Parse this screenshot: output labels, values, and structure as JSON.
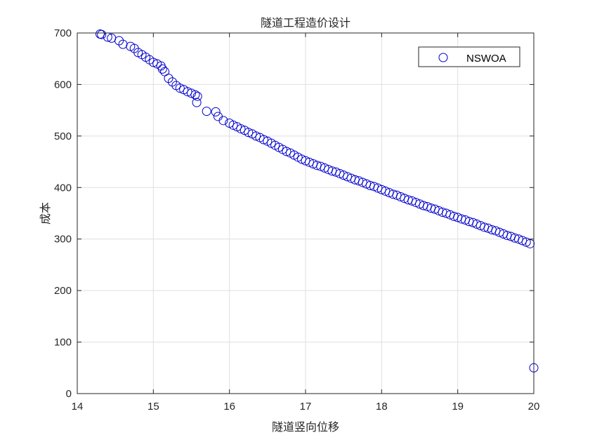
{
  "chart_data": {
    "type": "scatter",
    "title": "隧道工程造价设计",
    "xlabel": "隧道竖向位移",
    "ylabel": "成本",
    "xlim": [
      14,
      20
    ],
    "ylim": [
      0,
      700
    ],
    "xticks": [
      14,
      15,
      16,
      17,
      18,
      19,
      20
    ],
    "yticks": [
      0,
      100,
      200,
      300,
      400,
      500,
      600,
      700
    ],
    "grid": true,
    "legend": {
      "placement": "top-right",
      "entries": [
        "NSWOA"
      ]
    },
    "marker": "circle-open",
    "color": "#0000CD",
    "series": [
      {
        "name": "NSWOA",
        "x": [
          14.3,
          14.32,
          14.4,
          14.45,
          14.55,
          14.6,
          14.7,
          14.75,
          14.8,
          14.85,
          14.9,
          14.95,
          15.0,
          15.05,
          15.1,
          15.12,
          15.15,
          15.2,
          15.25,
          15.3,
          15.35,
          15.4,
          15.45,
          15.5,
          15.55,
          15.58,
          15.57,
          15.7,
          15.82,
          15.85,
          15.92,
          16.0,
          16.05,
          16.1,
          16.15,
          16.2,
          16.25,
          16.3,
          16.35,
          16.4,
          16.45,
          16.5,
          16.55,
          16.6,
          16.65,
          16.7,
          16.75,
          16.8,
          16.85,
          16.9,
          16.95,
          17.0,
          17.05,
          17.1,
          17.15,
          17.2,
          17.25,
          17.3,
          17.35,
          17.4,
          17.45,
          17.5,
          17.55,
          17.6,
          17.65,
          17.7,
          17.75,
          17.8,
          17.85,
          17.9,
          17.95,
          18.0,
          18.05,
          18.1,
          18.15,
          18.2,
          18.25,
          18.3,
          18.35,
          18.4,
          18.45,
          18.5,
          18.55,
          18.6,
          18.65,
          18.7,
          18.75,
          18.8,
          18.85,
          18.9,
          18.95,
          19.0,
          19.05,
          19.1,
          19.15,
          19.2,
          19.25,
          19.3,
          19.35,
          19.4,
          19.45,
          19.5,
          19.55,
          19.6,
          19.65,
          19.7,
          19.75,
          19.8,
          19.85,
          19.9,
          19.95,
          20.0
        ],
        "y": [
          698,
          697,
          692,
          690,
          685,
          678,
          674,
          670,
          662,
          658,
          653,
          648,
          643,
          640,
          636,
          630,
          625,
          612,
          605,
          598,
          593,
          590,
          586,
          583,
          580,
          577,
          565,
          548,
          547,
          538,
          530,
          525,
          521,
          518,
          514,
          511,
          507,
          504,
          500,
          497,
          493,
          490,
          486,
          482,
          478,
          474,
          470,
          467,
          463,
          459,
          455,
          452,
          449,
          446,
          443,
          441,
          438,
          435,
          432,
          430,
          427,
          424,
          421,
          418,
          415,
          413,
          410,
          407,
          404,
          402,
          399,
          396,
          393,
          390,
          387,
          385,
          382,
          379,
          376,
          374,
          371,
          368,
          365,
          363,
          360,
          358,
          355,
          352,
          350,
          347,
          344,
          342,
          339,
          337,
          334,
          332,
          329,
          326,
          323,
          321,
          318,
          316,
          313,
          310,
          307,
          305,
          302,
          300,
          297,
          294,
          291,
          50
        ]
      }
    ]
  }
}
